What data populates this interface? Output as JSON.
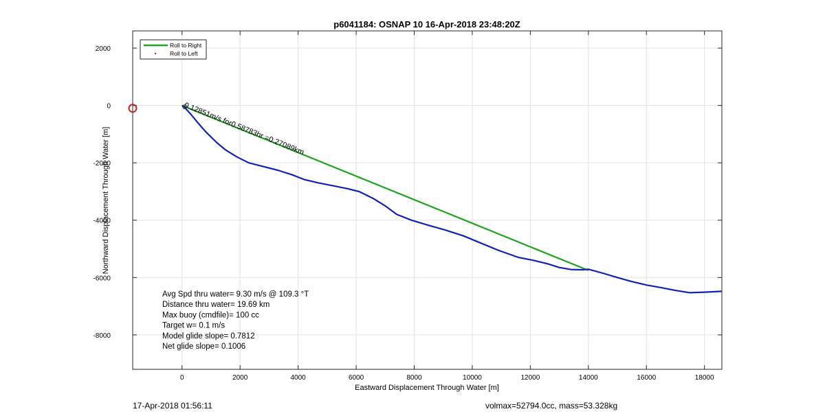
{
  "chart_data": {
    "type": "line",
    "title": "p6041184: OSNAP 10 16-Apr-2018 23:48:20Z",
    "xlabel": "Eastward Displacement Through Water [m]",
    "ylabel": "Northward Displacement Through Water [m]",
    "xlim": [
      -1700,
      18600
    ],
    "ylim": [
      -9200,
      2600
    ],
    "xticks": [
      0,
      2000,
      4000,
      6000,
      8000,
      10000,
      12000,
      14000,
      16000,
      18000
    ],
    "yticks": [
      2000,
      0,
      -2000,
      -4000,
      -6000,
      -8000
    ],
    "grid": true,
    "legend_position": "top-left",
    "series": [
      {
        "name": "Roll to Right",
        "color": "#1aa51a",
        "x": [
          0,
          14000
        ],
        "y": [
          0,
          -5750
        ]
      },
      {
        "name": "Roll to Left",
        "color": "#cc2222",
        "x": [],
        "y": []
      },
      {
        "color": "#1020b8",
        "x": [
          0,
          100,
          300,
          500,
          800,
          1200,
          1500,
          1900,
          2300,
          2800,
          3300,
          3800,
          4200,
          4700,
          5200,
          5700,
          6100,
          6600,
          7000,
          7400,
          7900,
          8500,
          9100,
          9700,
          10300,
          10900,
          11600,
          12100,
          12600,
          13000,
          13400,
          13800,
          14000,
          14500,
          15000,
          15500,
          16000,
          16500,
          17000,
          17500,
          18000,
          18600
        ],
        "y": [
          0,
          -80,
          -300,
          -550,
          -900,
          -1300,
          -1550,
          -1800,
          -2000,
          -2130,
          -2260,
          -2420,
          -2580,
          -2700,
          -2800,
          -2900,
          -3000,
          -3250,
          -3500,
          -3800,
          -4000,
          -4180,
          -4350,
          -4550,
          -4800,
          -5050,
          -5300,
          -5400,
          -5520,
          -5650,
          -5720,
          -5730,
          -5710,
          -5850,
          -6000,
          -6140,
          -6260,
          -6350,
          -6450,
          -6530,
          -6510,
          -6480
        ]
      }
    ],
    "markers": [
      {
        "x": -1700,
        "y": -100,
        "color": "#cc2222",
        "shape": "circle"
      }
    ],
    "annotations": [
      {
        "text": "0.12851m/s for0.58783hr =0.27089km",
        "x": 60,
        "y": -50,
        "angle": -22
      }
    ],
    "stats_lines": [
      "Avg Spd thru water=  9.30 m/s @ 109.3 °T",
      "Distance thru water= 19.69 km",
      "Max buoy (cmdfile)= 100 cc",
      "Target w= 0.1 m/s",
      "Model glide slope= 0.7812",
      "Net glide slope= 0.1006"
    ]
  },
  "footer": {
    "left": "17-Apr-2018 01:56:11",
    "right": "volmax=52794.0cc, mass=53.328kg"
  }
}
